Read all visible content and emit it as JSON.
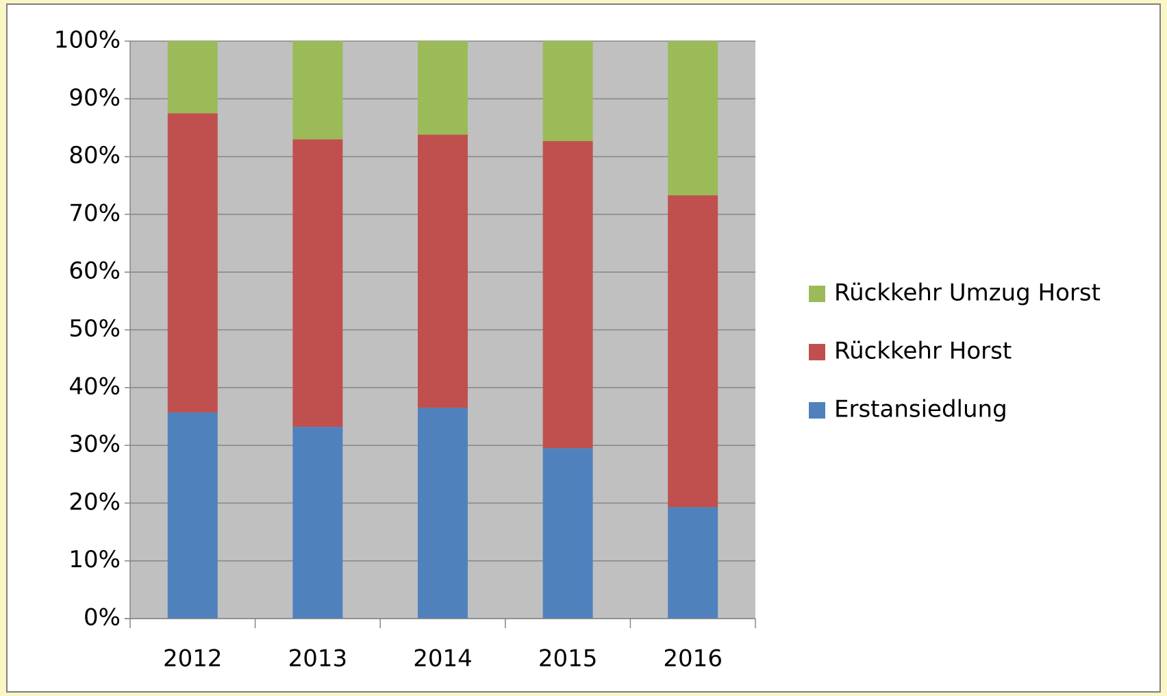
{
  "chart_data": {
    "type": "stacked_bar",
    "categories": [
      "2012",
      "2013",
      "2014",
      "2015",
      "2016"
    ],
    "series": [
      {
        "name": "Erstansiedlung",
        "color": "#4f81bd",
        "values": [
          35.7,
          33.2,
          36.5,
          29.5,
          19.3
        ]
      },
      {
        "name": "Rückkehr Horst",
        "color": "#c0504d",
        "values": [
          51.8,
          49.8,
          47.3,
          53.2,
          54.0
        ]
      },
      {
        "name": "Rückkehr Umzug Horst",
        "color": "#9bbb59",
        "values": [
          12.5,
          17.0,
          16.2,
          17.3,
          26.7
        ]
      }
    ],
    "ylim": [
      0,
      100
    ],
    "yticks": [
      {
        "value": 0,
        "label": "0%"
      },
      {
        "value": 10,
        "label": "10%"
      },
      {
        "value": 20,
        "label": "20%"
      },
      {
        "value": 30,
        "label": "30%"
      },
      {
        "value": 40,
        "label": "40%"
      },
      {
        "value": 50,
        "label": "50%"
      },
      {
        "value": 60,
        "label": "60%"
      },
      {
        "value": 70,
        "label": "70%"
      },
      {
        "value": 80,
        "label": "80%"
      },
      {
        "value": 90,
        "label": "90%"
      },
      {
        "value": 100,
        "label": "100%"
      }
    ],
    "grid": true,
    "legend": "right"
  }
}
